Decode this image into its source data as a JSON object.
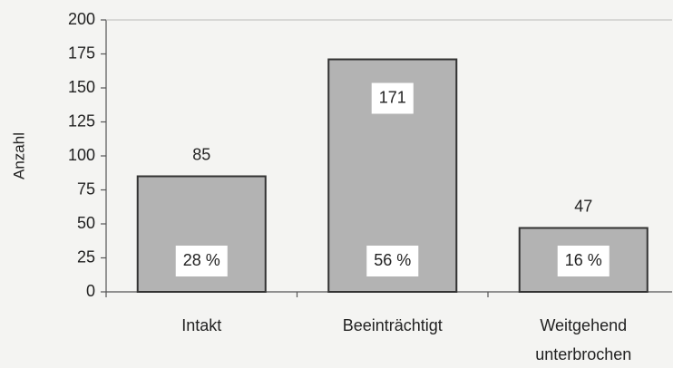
{
  "chart_data": {
    "type": "bar",
    "y_label": "Anzahl",
    "categories": [
      "Intakt",
      "Beeinträchtigt",
      "Weitgehend unterbrochen"
    ],
    "values": [
      85,
      171,
      47
    ],
    "color": "#b3b3b3",
    "percentages": [
      28,
      56,
      16
    ],
    "percentage_labels": [
      "28 %",
      "56 %",
      "16 %"
    ],
    "ylim": [
      0,
      200
    ],
    "yticks": [
      0,
      25,
      50,
      75,
      100,
      125,
      150,
      175,
      200
    ],
    "grid": false
  }
}
